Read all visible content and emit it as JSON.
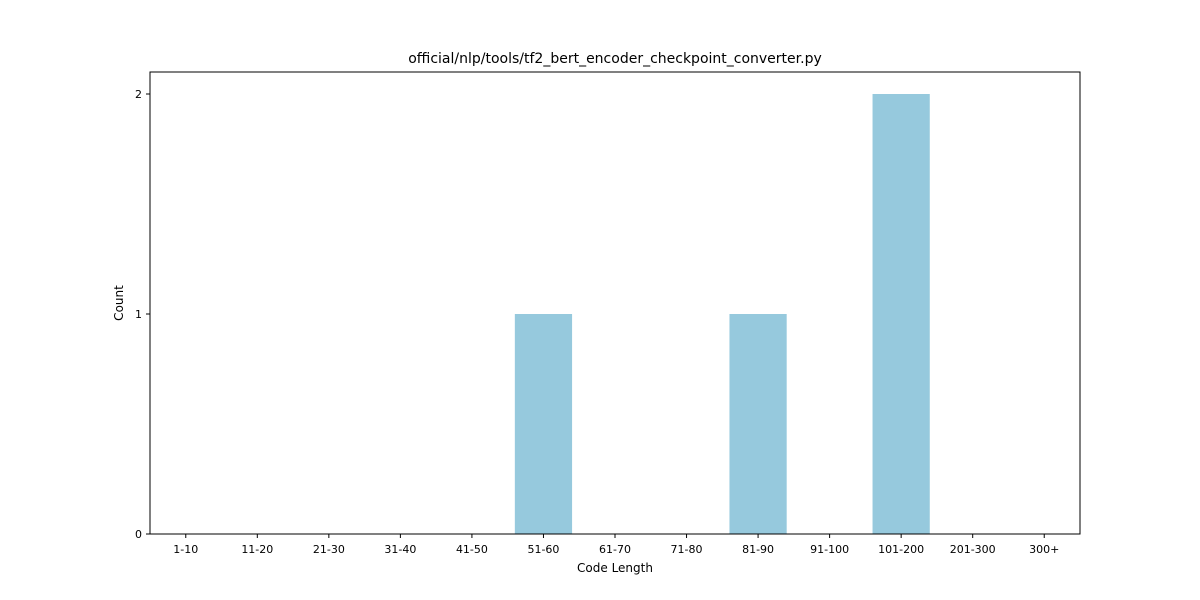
{
  "chart_data": {
    "type": "bar",
    "title": "official/nlp/tools/tf2_bert_encoder_checkpoint_converter.py",
    "xlabel": "Code Length",
    "ylabel": "Count",
    "categories": [
      "1-10",
      "11-20",
      "21-30",
      "31-40",
      "41-50",
      "51-60",
      "61-70",
      "71-80",
      "81-90",
      "91-100",
      "101-200",
      "201-300",
      "300+"
    ],
    "values": [
      0,
      0,
      0,
      0,
      0,
      1,
      0,
      0,
      1,
      0,
      2,
      0,
      0
    ],
    "ylim": [
      0,
      2.1
    ],
    "yticks": [
      "0",
      "1",
      "2"
    ],
    "bar_color": "#96c9dd",
    "grid": false,
    "legend": "none"
  }
}
